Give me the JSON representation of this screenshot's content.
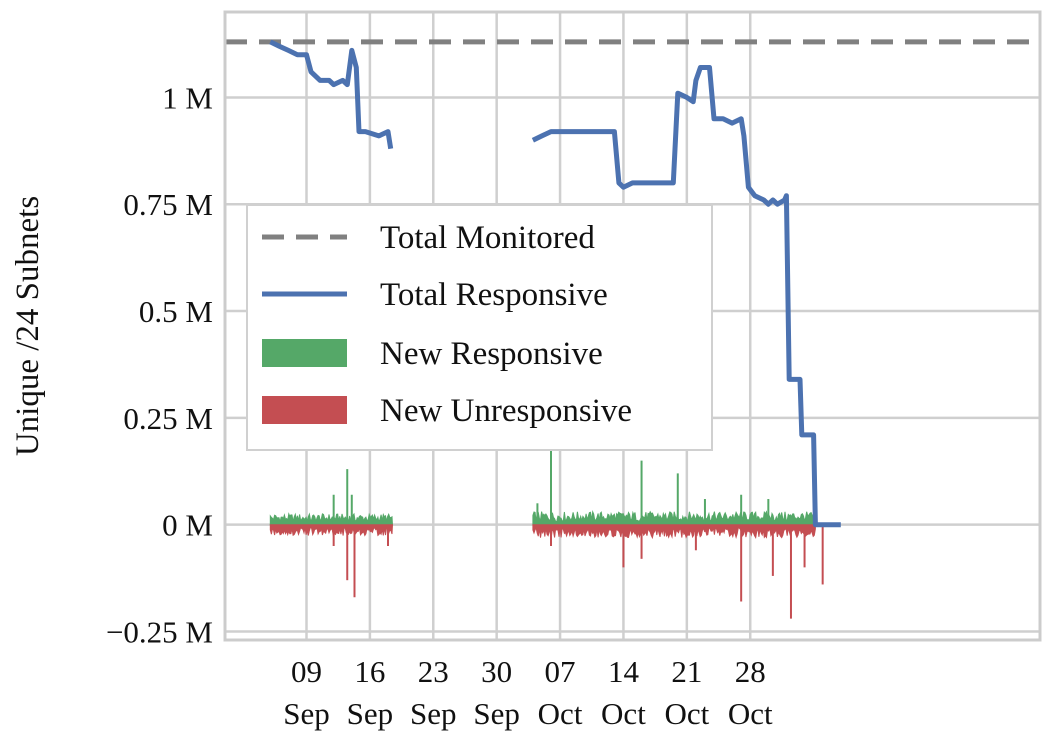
{
  "chart_data": {
    "type": "line",
    "title": "",
    "xlabel": "",
    "ylabel": "Unique /24 Subnets",
    "ylim": [
      -0.27,
      1.2
    ],
    "xlim": [
      0,
      90
    ],
    "grid": true,
    "legend_position": "upper-left",
    "y_ticks": [
      {
        "value": -0.25,
        "label": "−0.25 M"
      },
      {
        "value": 0,
        "label": "0 M"
      },
      {
        "value": 0.25,
        "label": "0.25 M"
      },
      {
        "value": 0.5,
        "label": "0.5 M"
      },
      {
        "value": 0.75,
        "label": "0.75 M"
      },
      {
        "value": 1,
        "label": "1 M"
      }
    ],
    "x_ticks": [
      {
        "day": 9,
        "day_label": "09",
        "month_label": "Sep"
      },
      {
        "day": 16,
        "day_label": "16",
        "month_label": "Sep"
      },
      {
        "day": 23,
        "day_label": "23",
        "month_label": "Sep"
      },
      {
        "day": 30,
        "day_label": "30",
        "month_label": "Sep"
      },
      {
        "day": 37,
        "day_label": "07",
        "month_label": "Oct"
      },
      {
        "day": 44,
        "day_label": "14",
        "month_label": "Oct"
      },
      {
        "day": 51,
        "day_label": "21",
        "month_label": "Oct"
      },
      {
        "day": 58,
        "day_label": "28",
        "month_label": "Oct"
      }
    ],
    "legend": [
      "Total Monitored",
      "Total Responsive",
      "New Responsive",
      "New Unresponsive"
    ],
    "colors": {
      "total_monitored": "#808080",
      "total_responsive": "#4C72B0",
      "new_responsive": "#55A868",
      "new_unresponsive": "#C44E52",
      "grid": "#cfcfcf"
    },
    "series": [
      {
        "name": "Total Monitored",
        "style": "dashed",
        "points": [
          [
            0,
            1.13
          ],
          [
            90,
            1.13
          ]
        ]
      },
      {
        "name": "Total Responsive",
        "style": "solid",
        "segments": [
          [
            [
              5,
              1.13
            ],
            [
              6,
              1.12
            ],
            [
              7,
              1.11
            ],
            [
              8,
              1.1
            ],
            [
              9,
              1.1
            ],
            [
              9.5,
              1.06
            ],
            [
              10.5,
              1.04
            ],
            [
              11.5,
              1.04
            ],
            [
              12,
              1.03
            ],
            [
              13,
              1.04
            ],
            [
              13.5,
              1.03
            ],
            [
              14,
              1.11
            ],
            [
              14.5,
              1.07
            ],
            [
              14.8,
              0.92
            ],
            [
              15.5,
              0.92
            ],
            [
              17,
              0.91
            ],
            [
              18,
              0.92
            ],
            [
              18.3,
              0.88
            ]
          ],
          [
            [
              34,
              0.9
            ],
            [
              35,
              0.91
            ],
            [
              36,
              0.92
            ],
            [
              38,
              0.92
            ],
            [
              40,
              0.92
            ],
            [
              42,
              0.92
            ],
            [
              43,
              0.92
            ],
            [
              43.5,
              0.8
            ],
            [
              44,
              0.79
            ],
            [
              45,
              0.8
            ],
            [
              47,
              0.8
            ],
            [
              48,
              0.8
            ],
            [
              49,
              0.8
            ],
            [
              49.5,
              0.8
            ],
            [
              50,
              1.01
            ],
            [
              51,
              1.0
            ],
            [
              51.7,
              0.99
            ],
            [
              52,
              1.04
            ],
            [
              52.5,
              1.07
            ],
            [
              53.5,
              1.07
            ],
            [
              54,
              0.95
            ],
            [
              55,
              0.95
            ],
            [
              56,
              0.94
            ],
            [
              57,
              0.95
            ],
            [
              57.3,
              0.91
            ],
            [
              57.8,
              0.79
            ],
            [
              58.5,
              0.77
            ],
            [
              59.5,
              0.76
            ],
            [
              60,
              0.75
            ],
            [
              60.5,
              0.76
            ],
            [
              61,
              0.75
            ],
            [
              61.8,
              0.76
            ],
            [
              62,
              0.77
            ],
            [
              62.3,
              0.34
            ],
            [
              63,
              0.34
            ],
            [
              63.5,
              0.34
            ],
            [
              63.7,
              0.21
            ],
            [
              64.5,
              0.21
            ],
            [
              65,
              0.21
            ],
            [
              65.2,
              0.0
            ],
            [
              68,
              0.0
            ]
          ]
        ]
      },
      {
        "name": "New Responsive",
        "style": "area_positive",
        "ranges": [
          [
            5,
            18.5,
            0.015
          ],
          [
            34,
            65.2,
            0.018
          ]
        ],
        "spikes": [
          [
            12,
            0.07
          ],
          [
            13.5,
            0.13
          ],
          [
            14,
            0.07
          ],
          [
            34.5,
            0.05
          ],
          [
            36,
            0.2
          ],
          [
            46,
            0.15
          ],
          [
            50,
            0.12
          ],
          [
            53,
            0.06
          ],
          [
            57,
            0.07
          ],
          [
            60,
            0.06
          ]
        ]
      },
      {
        "name": "New Unresponsive",
        "style": "area_negative",
        "ranges": [
          [
            5,
            18.5,
            -0.015
          ],
          [
            34,
            65.2,
            -0.018
          ]
        ],
        "spikes": [
          [
            12,
            -0.05
          ],
          [
            13.5,
            -0.13
          ],
          [
            14.3,
            -0.17
          ],
          [
            18,
            -0.05
          ],
          [
            36,
            -0.05
          ],
          [
            44,
            -0.1
          ],
          [
            46,
            -0.08
          ],
          [
            52,
            -0.06
          ],
          [
            57,
            -0.18
          ],
          [
            60.5,
            -0.12
          ],
          [
            62.5,
            -0.22
          ],
          [
            64,
            -0.1
          ],
          [
            66,
            -0.14
          ]
        ]
      }
    ]
  }
}
